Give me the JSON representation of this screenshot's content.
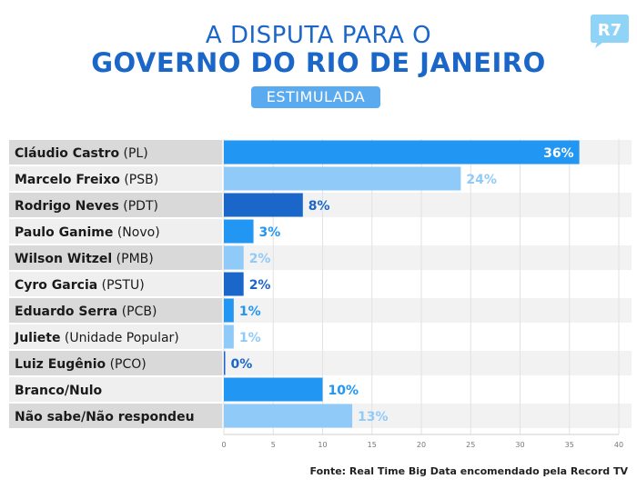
{
  "header": {
    "logo_text": "R7",
    "title_line1": "A DISPUTA PARA O",
    "title_line2": "GOVERNO DO RIO DE JANEIRO",
    "subtitle": "ESTIMULADA"
  },
  "colors": {
    "title": "#1a66c9",
    "subtitle_bg": "#5aaaf0",
    "bar_dark": "#1a66c9",
    "bar_mid": "#2196f3",
    "bar_light": "#90caf9",
    "logo": "#8fd3f7"
  },
  "chart_data": {
    "type": "bar",
    "orientation": "horizontal",
    "categories": [
      {
        "name": "Cláudio Castro",
        "party": "(PL)"
      },
      {
        "name": "Marcelo Freixo",
        "party": "(PSB)"
      },
      {
        "name": "Rodrigo Neves",
        "party": "(PDT)"
      },
      {
        "name": "Paulo Ganime",
        "party": "(Novo)"
      },
      {
        "name": "Wilson Witzel",
        "party": "(PMB)"
      },
      {
        "name": "Cyro Garcia",
        "party": "(PSTU)"
      },
      {
        "name": "Eduardo Serra",
        "party": "(PCB)"
      },
      {
        "name": "Juliete",
        "party": "(Unidade Popular)"
      },
      {
        "name": "Luiz Eugênio",
        "party": "(PCO)"
      },
      {
        "name": "Branco/Nulo",
        "party": ""
      },
      {
        "name": "Não sabe/Não respondeu",
        "party": ""
      }
    ],
    "values": [
      36,
      24,
      8,
      3,
      2,
      2,
      1,
      1,
      0,
      10,
      13
    ],
    "value_labels": [
      "36%",
      "24%",
      "8%",
      "3%",
      "2%",
      "2%",
      "1%",
      "1%",
      "0%",
      "10%",
      "13%"
    ],
    "bar_colors": [
      "#2196f3",
      "#90caf9",
      "#1a66c9",
      "#2196f3",
      "#90caf9",
      "#1a66c9",
      "#2196f3",
      "#90caf9",
      "#1a66c9",
      "#2196f3",
      "#90caf9"
    ],
    "xlim": [
      0,
      40
    ],
    "xticks": [
      0,
      5,
      10,
      15,
      20,
      25,
      30,
      35,
      40
    ],
    "grid": true,
    "legend": "none"
  },
  "footer": {
    "source": "Fonte: Real Time Big Data encomendado pela Record TV"
  }
}
